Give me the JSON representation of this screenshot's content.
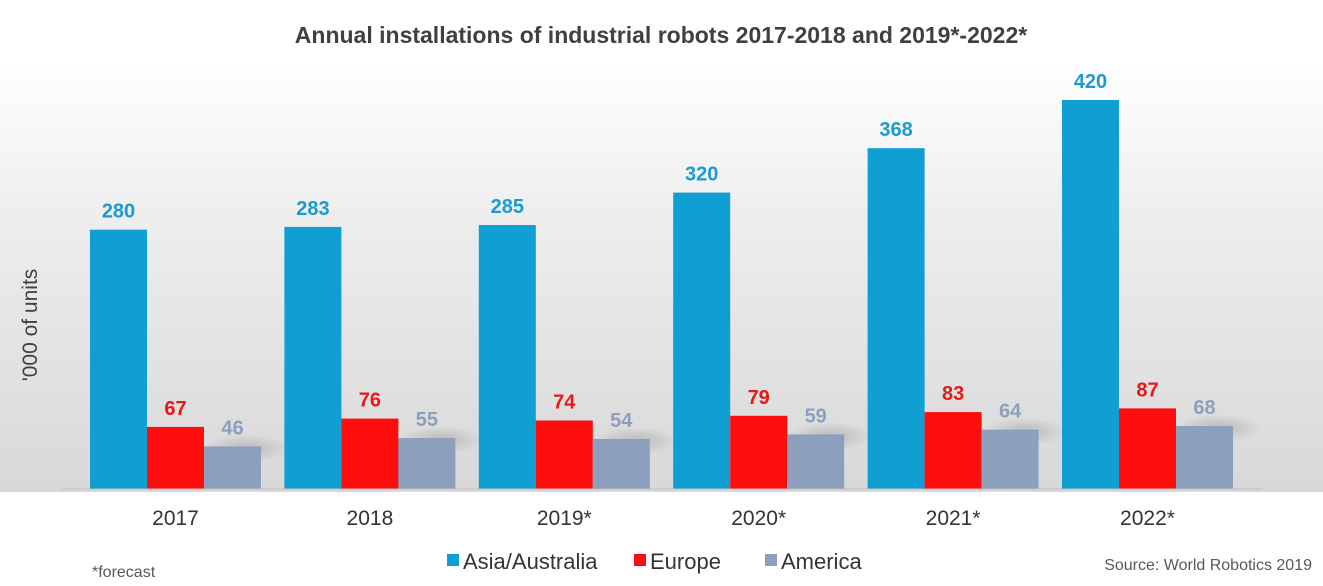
{
  "colors": {
    "asia": "#0f9fd3",
    "europe": "#ff0d0d",
    "america": "#8c9fbd",
    "asia_label": "#1a9bd4",
    "europe_label": "#e8171a",
    "america_label": "#8c9fbd"
  },
  "chart_data": {
    "type": "bar",
    "title": "Annual installations of industrial robots 2017-2018 and 2019*-2022*",
    "xlabel": "",
    "ylabel": "'000 of units",
    "categories": [
      "2017",
      "2018",
      "2019*",
      "2020*",
      "2021*",
      "2022*"
    ],
    "series": [
      {
        "name": "Asia/Australia",
        "values": [
          280,
          283,
          285,
          320,
          368,
          420
        ]
      },
      {
        "name": "Europe",
        "values": [
          67,
          76,
          74,
          79,
          83,
          87
        ]
      },
      {
        "name": "America",
        "values": [
          46,
          55,
          54,
          59,
          64,
          68
        ]
      }
    ],
    "ylim": [
      0,
      420
    ],
    "grid": false,
    "legend_position": "bottom-center",
    "footnote": "*forecast",
    "source": "Source: World Robotics 2019"
  }
}
